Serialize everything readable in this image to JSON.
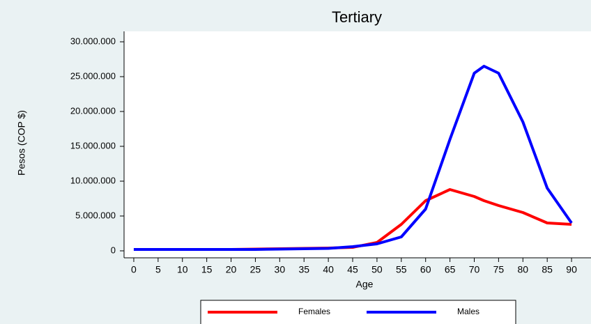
{
  "chart_data": {
    "type": "line",
    "title": "Tertiary",
    "xlabel": "Age",
    "ylabel": "Pesos (COP $)",
    "x": [
      0,
      5,
      10,
      15,
      20,
      25,
      30,
      35,
      40,
      45,
      50,
      55,
      60,
      65,
      70,
      72,
      75,
      80,
      85,
      90
    ],
    "series": [
      {
        "name": "Females",
        "color": "#ff0000",
        "values": [
          200000,
          200000,
          200000,
          200000,
          200000,
          250000,
          300000,
          350000,
          400000,
          500000,
          1200000,
          3800000,
          7200000,
          8800000,
          7800000,
          7200000,
          6500000,
          5500000,
          4000000,
          3800000
        ]
      },
      {
        "name": "Males",
        "color": "#0000ff",
        "values": [
          200000,
          200000,
          200000,
          200000,
          200000,
          200000,
          250000,
          300000,
          350000,
          600000,
          1000000,
          2000000,
          6000000,
          16000000,
          25500000,
          26500000,
          25500000,
          18500000,
          9000000,
          4000000
        ]
      }
    ],
    "xlim": [
      -2,
      94
    ],
    "xticks": [
      0,
      5,
      10,
      15,
      20,
      25,
      30,
      35,
      40,
      45,
      50,
      55,
      60,
      65,
      70,
      75,
      80,
      85,
      90
    ],
    "ylim": [
      -1000000,
      31500000
    ],
    "yticks": [
      {
        "value": 0,
        "label": "0"
      },
      {
        "value": 5000000,
        "label": "5.000.000"
      },
      {
        "value": 10000000,
        "label": "10.000.000"
      },
      {
        "value": 15000000,
        "label": "15.000.000"
      },
      {
        "value": 20000000,
        "label": "20.000.000"
      },
      {
        "value": 25000000,
        "label": "25.000.000"
      },
      {
        "value": 30000000,
        "label": "30.000.000"
      }
    ]
  }
}
